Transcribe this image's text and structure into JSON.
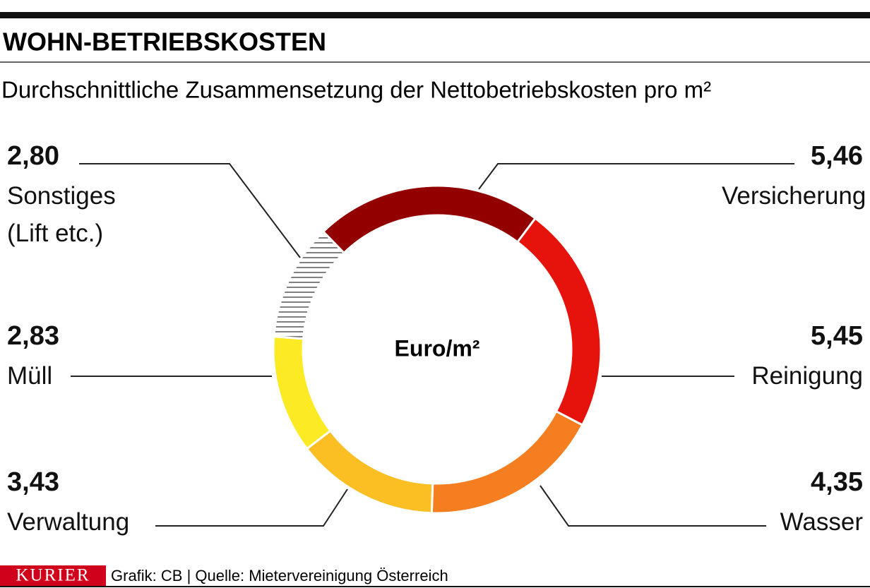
{
  "chart_data": {
    "type": "pie",
    "donut": true,
    "title": "WOHN-BETRIEBSKOSTEN",
    "subtitle": "Durchschnittliche Zusammensetzung der Nettobetriebskosten pro m²",
    "center_label": "Euro/m²",
    "categories": [
      "Versicherung",
      "Reinigung",
      "Wasser",
      "Verwaltung",
      "Müll",
      "Sonstiges (Lift etc.)"
    ],
    "values": [
      5.46,
      5.45,
      4.35,
      3.43,
      2.83,
      2.8
    ],
    "value_labels": [
      "5,46",
      "5,45",
      "4,35",
      "3,43",
      "2,83",
      "2,80"
    ],
    "colors": [
      "#930000",
      "#e5130b",
      "#f57f20",
      "#fbbf24",
      "#fcea24",
      "hatch"
    ],
    "logo": "KURIER",
    "source": "Grafik: CB | Quelle: Mietervereinigung Österreich"
  }
}
